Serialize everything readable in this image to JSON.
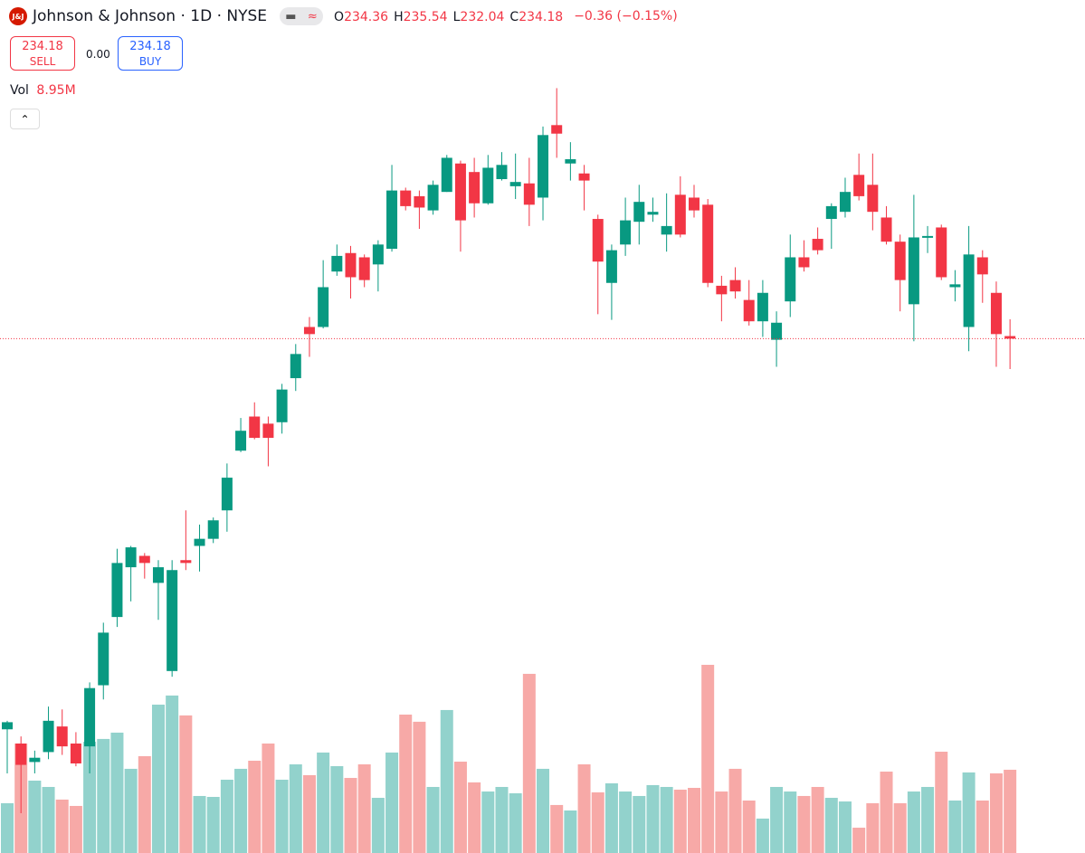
{
  "header": {
    "logo": "J&J",
    "title": "Johnson & Johnson · 1D · NYSE",
    "ohlc": [
      {
        "key": "O",
        "value": "234.36"
      },
      {
        "key": "H",
        "value": "235.54"
      },
      {
        "key": "L",
        "value": "232.04"
      },
      {
        "key": "C",
        "value": "234.18"
      }
    ],
    "change": "−0.36 (−0.15%)"
  },
  "trade": {
    "sell_price": "234.18",
    "sell": "SELL",
    "spread": "0.00",
    "buy_price": "234.18",
    "buy": "BUY"
  },
  "volume_legend": {
    "label": "Vol",
    "value": "8.95M"
  },
  "chart_data": {
    "type": "candlestick",
    "ylim": [
      198,
      258
    ],
    "volume_lim": [
      0,
      91.7
    ],
    "up_color": "#089981",
    "down_color": "#f23645",
    "volume_up_color": "#92d2cc",
    "volume_down_color": "#f7a9a7",
    "last_price_line": true,
    "open": [
      206.7,
      205.7,
      204.4,
      205.1,
      206.9,
      205.7,
      205.5,
      209.8,
      214.6,
      218.1,
      218.9,
      217.0,
      210.8,
      218.6,
      219.6,
      220.1,
      222.1,
      226.3,
      228.7,
      228.2,
      228.3,
      231.4,
      235.0,
      235.0,
      238.9,
      240.2,
      239.9,
      239.4,
      240.5,
      244.6,
      244.2,
      243.2,
      244.5,
      246.5,
      245.9,
      243.7,
      245.4,
      244.9,
      245.1,
      244.1,
      249.2,
      246.5,
      245.8,
      242.6,
      238.1,
      240.8,
      242.4,
      242.9,
      241.5,
      244.3,
      244.1,
      243.6,
      237.9,
      238.3,
      236.9,
      235.4,
      234.1,
      236.8,
      239.9,
      241.2,
      242.6,
      243.1,
      245.7,
      245.0,
      242.7,
      241.0,
      236.6,
      241.3,
      242.0,
      237.8,
      235.0,
      239.9,
      237.4,
      234.36
    ],
    "high": [
      207.3,
      206.2,
      205.2,
      208.3,
      208.1,
      206.5,
      210.0,
      214.2,
      219.4,
      219.6,
      219.1,
      218.6,
      218.6,
      222.1,
      221.1,
      221.6,
      225.4,
      228.6,
      229.7,
      228.7,
      231.0,
      233.8,
      235.7,
      239.7,
      240.8,
      240.7,
      240.1,
      241.1,
      246.4,
      244.8,
      244.6,
      245.3,
      247.1,
      246.7,
      246.9,
      247.1,
      247.3,
      247.2,
      246.9,
      249.1,
      251.8,
      248.0,
      246.4,
      242.9,
      240.8,
      244.1,
      245.0,
      244.1,
      244.4,
      245.6,
      245.0,
      244.0,
      238.6,
      239.2,
      238.3,
      238.3,
      236.1,
      241.5,
      241.1,
      242.0,
      243.7,
      245.5,
      247.2,
      247.2,
      243.5,
      241.5,
      244.3,
      242.1,
      242.2,
      239.0,
      242.1,
      240.4,
      238.2,
      235.54
    ],
    "low": [
      203.6,
      200.8,
      203.6,
      204.6,
      204.9,
      204.1,
      203.6,
      208.8,
      213.9,
      215.7,
      217.3,
      214.4,
      210.4,
      217.9,
      217.8,
      219.8,
      220.6,
      226.2,
      227.1,
      225.2,
      227.5,
      230.5,
      232.9,
      234.9,
      238.6,
      237.0,
      237.8,
      237.5,
      240.3,
      243.2,
      241.9,
      242.9,
      244.5,
      240.3,
      242.7,
      243.6,
      245.3,
      244.0,
      242.1,
      242.5,
      246.9,
      245.3,
      243.2,
      235.9,
      235.5,
      240.0,
      240.8,
      242.4,
      240.3,
      241.3,
      242.7,
      237.8,
      235.4,
      237.0,
      235.1,
      234.3,
      232.2,
      235.7,
      238.9,
      240.1,
      240.5,
      242.7,
      243.9,
      241.8,
      240.8,
      236.1,
      234.0,
      240.2,
      238.3,
      236.8,
      233.3,
      236.7,
      232.2,
      232.04
    ],
    "close": [
      207.2,
      204.2,
      204.7,
      207.3,
      205.5,
      204.3,
      209.6,
      213.5,
      218.4,
      219.5,
      218.4,
      218.1,
      217.9,
      218.4,
      220.1,
      221.4,
      224.4,
      227.7,
      227.2,
      227.2,
      230.6,
      233.1,
      234.5,
      237.8,
      240.0,
      238.5,
      238.3,
      240.8,
      244.6,
      243.5,
      243.4,
      245.0,
      246.9,
      242.5,
      243.7,
      246.2,
      246.4,
      245.2,
      243.6,
      248.5,
      248.6,
      246.8,
      245.3,
      239.6,
      240.4,
      242.5,
      243.8,
      243.1,
      242.1,
      241.5,
      243.2,
      238.1,
      237.3,
      237.5,
      235.4,
      237.4,
      235.3,
      239.9,
      239.2,
      240.4,
      243.5,
      244.5,
      244.2,
      243.1,
      241.0,
      238.3,
      241.3,
      241.4,
      238.5,
      238.0,
      240.1,
      238.7,
      234.5,
      234.18
    ],
    "volume": [
      5.35,
      11.77,
      7.78,
      7.1,
      5.74,
      5.06,
      11.96,
      12.26,
      12.94,
      9.05,
      10.41,
      15.95,
      16.93,
      14.79,
      6.13,
      6.03,
      7.88,
      9.05,
      9.92,
      11.77,
      7.88,
      9.53,
      8.37,
      10.8,
      9.34,
      8.07,
      9.53,
      5.93,
      10.8,
      14.88,
      14.11,
      7.1,
      15.37,
      9.82,
      7.59,
      6.61,
      7.1,
      6.42,
      19.26,
      9.05,
      5.16,
      4.57,
      9.53,
      6.52,
      7.49,
      6.61,
      6.13,
      7.3,
      7.1,
      6.81,
      7.0,
      20.23,
      6.61,
      9.05,
      5.64,
      3.7,
      7.1,
      6.61,
      6.13,
      7.1,
      5.93,
      5.54,
      2.72,
      5.35,
      8.75,
      5.35,
      6.61,
      7.1,
      10.89,
      5.64,
      8.66,
      5.64,
      8.56,
      8.95
    ]
  }
}
